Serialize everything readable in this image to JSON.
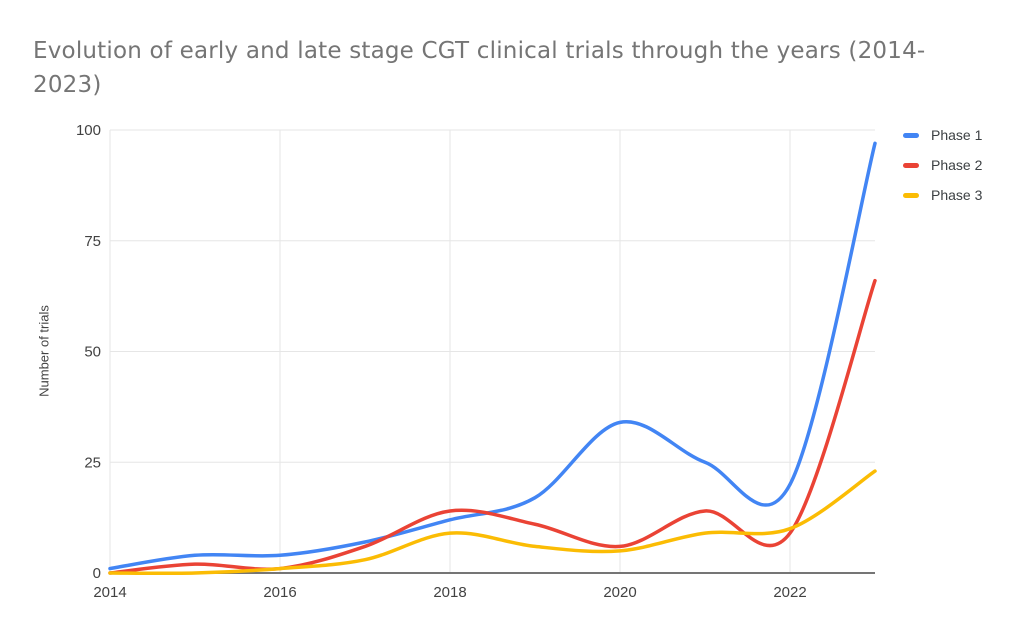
{
  "page": {
    "background": "#ffffff"
  },
  "chart_data": {
    "type": "line",
    "smooth": true,
    "title": "Evolution of early and late stage CGT clinical trials through the years (2014-2023)",
    "xlabel": "",
    "ylabel": "Number of trials",
    "x": [
      2014,
      2015,
      2016,
      2017,
      2018,
      2019,
      2020,
      2021,
      2022,
      2023
    ],
    "series": [
      {
        "name": "Phase 1",
        "color": "#4285F4",
        "values": [
          1,
          4,
          4,
          7,
          12,
          17,
          34,
          25,
          20,
          97
        ]
      },
      {
        "name": "Phase 2",
        "color": "#EA4335",
        "values": [
          0,
          2,
          1,
          6,
          14,
          11,
          6,
          14,
          9,
          66
        ]
      },
      {
        "name": "Phase 3",
        "color": "#FBBC04",
        "values": [
          0,
          0,
          1,
          3,
          9,
          6,
          5,
          9,
          10,
          23
        ]
      }
    ],
    "ylim": [
      0,
      100
    ],
    "yticks": [
      0,
      25,
      50,
      75,
      100
    ],
    "xticks": [
      2014,
      2016,
      2018,
      2020,
      2022
    ],
    "grid": true,
    "legend_position": "top-right",
    "gridline_color": "#e6e6e6",
    "axis_color": "#757575",
    "tick_label_color": "#424242",
    "title_color": "#757575"
  }
}
